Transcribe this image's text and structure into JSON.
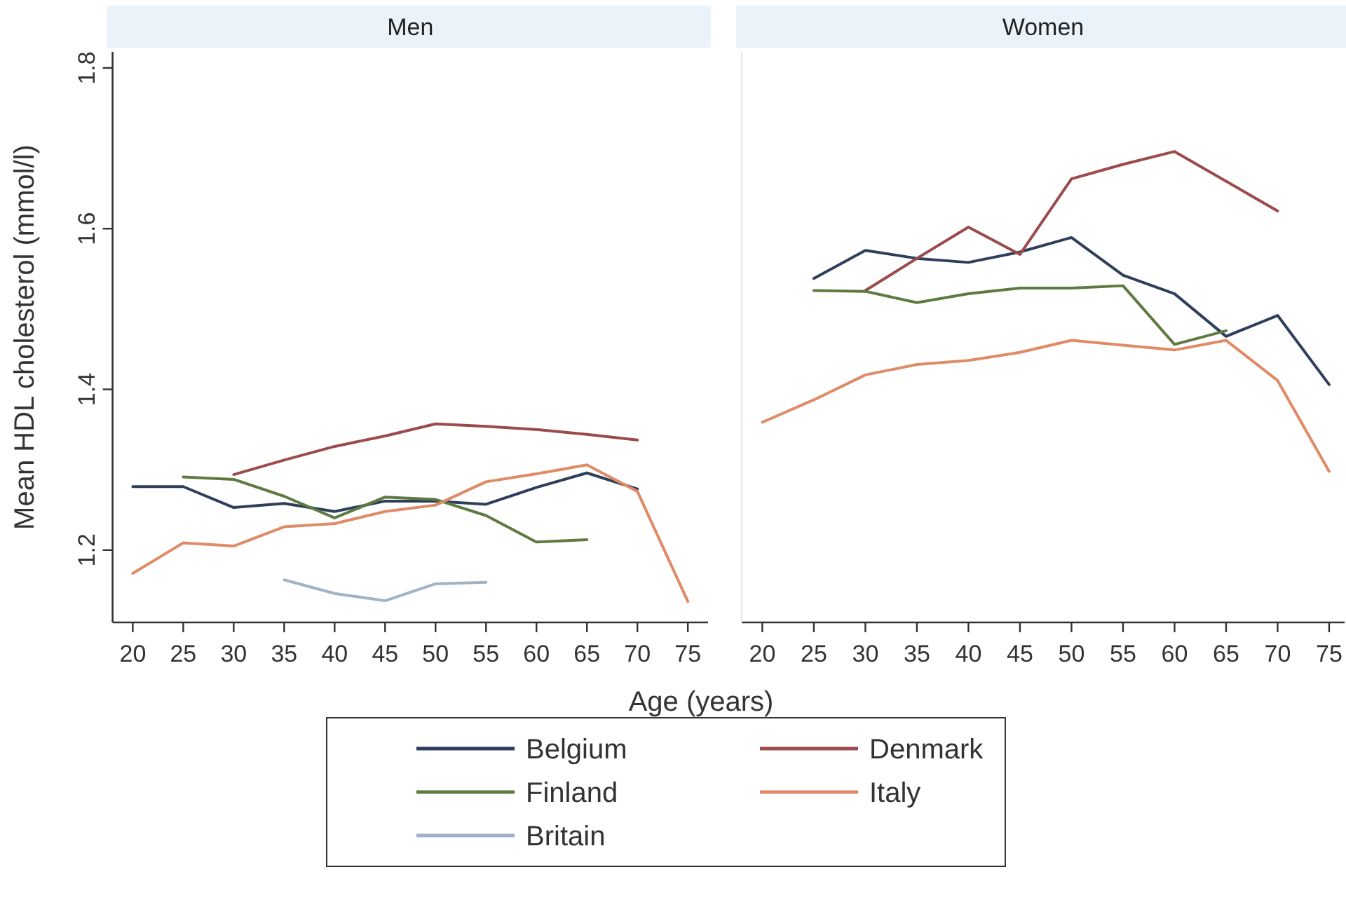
{
  "chart_data": [
    {
      "type": "line",
      "title": "Men",
      "xlabel": "Age (years)",
      "ylabel": "Mean HDL cholesterol (mmol/l)",
      "xlim": [
        18,
        77
      ],
      "xticks": [
        20,
        25,
        30,
        35,
        40,
        45,
        50,
        55,
        60,
        65,
        70,
        75
      ],
      "ylim": [
        1.11,
        1.82
      ],
      "yticks": [
        1.2,
        1.4,
        1.6,
        1.8
      ],
      "legend": "bottom",
      "grid": false,
      "series": [
        {
          "name": "Belgium",
          "color": "#2e3f5c",
          "x": [
            20,
            25,
            30,
            35,
            40,
            45,
            50,
            55,
            60,
            65,
            70
          ],
          "values": [
            1.279,
            1.279,
            1.253,
            1.258,
            1.248,
            1.261,
            1.261,
            1.257,
            1.278,
            1.296,
            1.276
          ]
        },
        {
          "name": "Denmark",
          "color": "#9c4a4a",
          "x": [
            30,
            35,
            40,
            45,
            50,
            55,
            60,
            65,
            70
          ],
          "values": [
            1.294,
            1.312,
            1.329,
            1.342,
            1.357,
            1.354,
            1.35,
            1.344,
            1.337
          ]
        },
        {
          "name": "Finland",
          "color": "#5e7a40",
          "x": [
            25,
            30,
            35,
            40,
            45,
            50,
            55,
            60,
            65
          ],
          "values": [
            1.291,
            1.288,
            1.267,
            1.24,
            1.266,
            1.263,
            1.243,
            1.21,
            1.213
          ]
        },
        {
          "name": "Italy",
          "color": "#e08a66",
          "x": [
            20,
            25,
            30,
            35,
            40,
            45,
            50,
            55,
            60,
            65,
            70,
            75
          ],
          "values": [
            1.171,
            1.209,
            1.205,
            1.229,
            1.233,
            1.248,
            1.256,
            1.285,
            1.295,
            1.306,
            1.273,
            1.136
          ]
        },
        {
          "name": "Britain",
          "color": "#9fb3c8",
          "x": [
            35,
            40,
            45,
            50,
            55
          ],
          "values": [
            1.163,
            1.146,
            1.137,
            1.158,
            1.16
          ]
        }
      ]
    },
    {
      "type": "line",
      "title": "Women",
      "xlim": [
        18,
        76.5
      ],
      "xticks": [
        20,
        25,
        30,
        35,
        40,
        45,
        50,
        55,
        60,
        65,
        70,
        75
      ],
      "ylim": [
        1.11,
        1.82
      ],
      "tick_labels": "x",
      "grid": false,
      "series": [
        {
          "color": "#2e3f5c",
          "x": [
            25,
            30,
            35,
            40,
            45,
            50,
            55,
            60,
            65,
            70,
            75
          ],
          "values": [
            1.538,
            1.573,
            1.563,
            1.558,
            1.571,
            1.589,
            1.542,
            1.519,
            1.466,
            1.492,
            1.406
          ]
        },
        {
          "color": "#9c4a4a",
          "x": [
            30,
            35,
            40,
            45,
            50,
            55,
            60,
            65,
            70
          ],
          "values": [
            1.523,
            1.563,
            1.602,
            1.568,
            1.662,
            1.68,
            1.696,
            1.659,
            1.622
          ]
        },
        {
          "color": "#5e7a40",
          "x": [
            25,
            30,
            35,
            40,
            45,
            50,
            55,
            60,
            65
          ],
          "values": [
            1.523,
            1.522,
            1.508,
            1.519,
            1.526,
            1.526,
            1.529,
            1.456,
            1.473
          ]
        },
        {
          "color": "#e08a66",
          "x": [
            20,
            25,
            30,
            35,
            40,
            45,
            50,
            55,
            60,
            65,
            70,
            75
          ],
          "values": [
            1.359,
            1.387,
            1.418,
            1.431,
            1.436,
            1.446,
            1.461,
            1.455,
            1.449,
            1.461,
            1.411,
            1.298
          ]
        }
      ]
    }
  ]
}
